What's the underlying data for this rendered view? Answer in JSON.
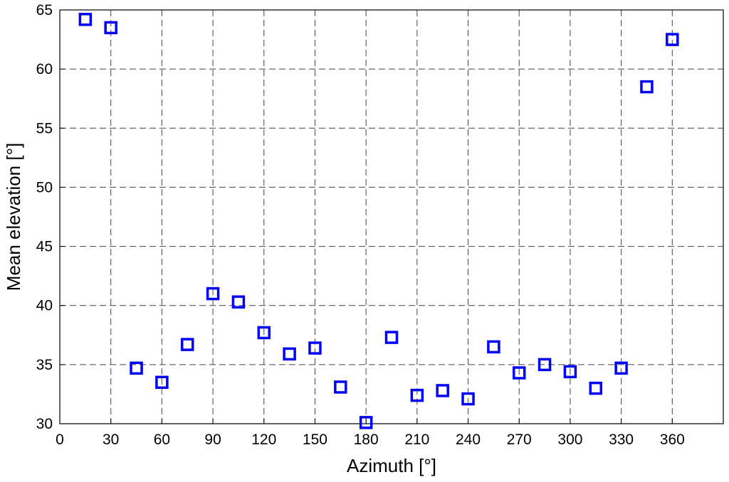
{
  "chart_data": {
    "type": "scatter",
    "title": "",
    "xlabel": "Azimuth [°]",
    "ylabel": "Mean elevation [°]",
    "xlim": [
      0,
      390
    ],
    "ylim": [
      30,
      65
    ],
    "xticks": [
      0,
      30,
      60,
      90,
      120,
      150,
      180,
      210,
      240,
      270,
      300,
      330,
      360
    ],
    "yticks": [
      30,
      35,
      40,
      45,
      50,
      55,
      60,
      65
    ],
    "grid": true,
    "grid_style": "dashed",
    "marker": "square",
    "marker_color": "#0000ff",
    "series": [
      {
        "x": [
          15,
          30,
          45,
          60,
          75,
          90,
          105,
          120,
          135,
          150,
          165,
          180,
          195,
          210,
          225,
          240,
          255,
          270,
          285,
          300,
          315,
          330,
          345,
          360
        ],
        "y": [
          64.2,
          63.5,
          34.7,
          33.5,
          36.7,
          41.0,
          40.3,
          37.7,
          35.9,
          36.4,
          33.1,
          30.1,
          37.3,
          32.4,
          32.8,
          32.1,
          36.5,
          34.3,
          35.0,
          34.4,
          33.0,
          34.7,
          58.5,
          62.5
        ]
      }
    ]
  }
}
